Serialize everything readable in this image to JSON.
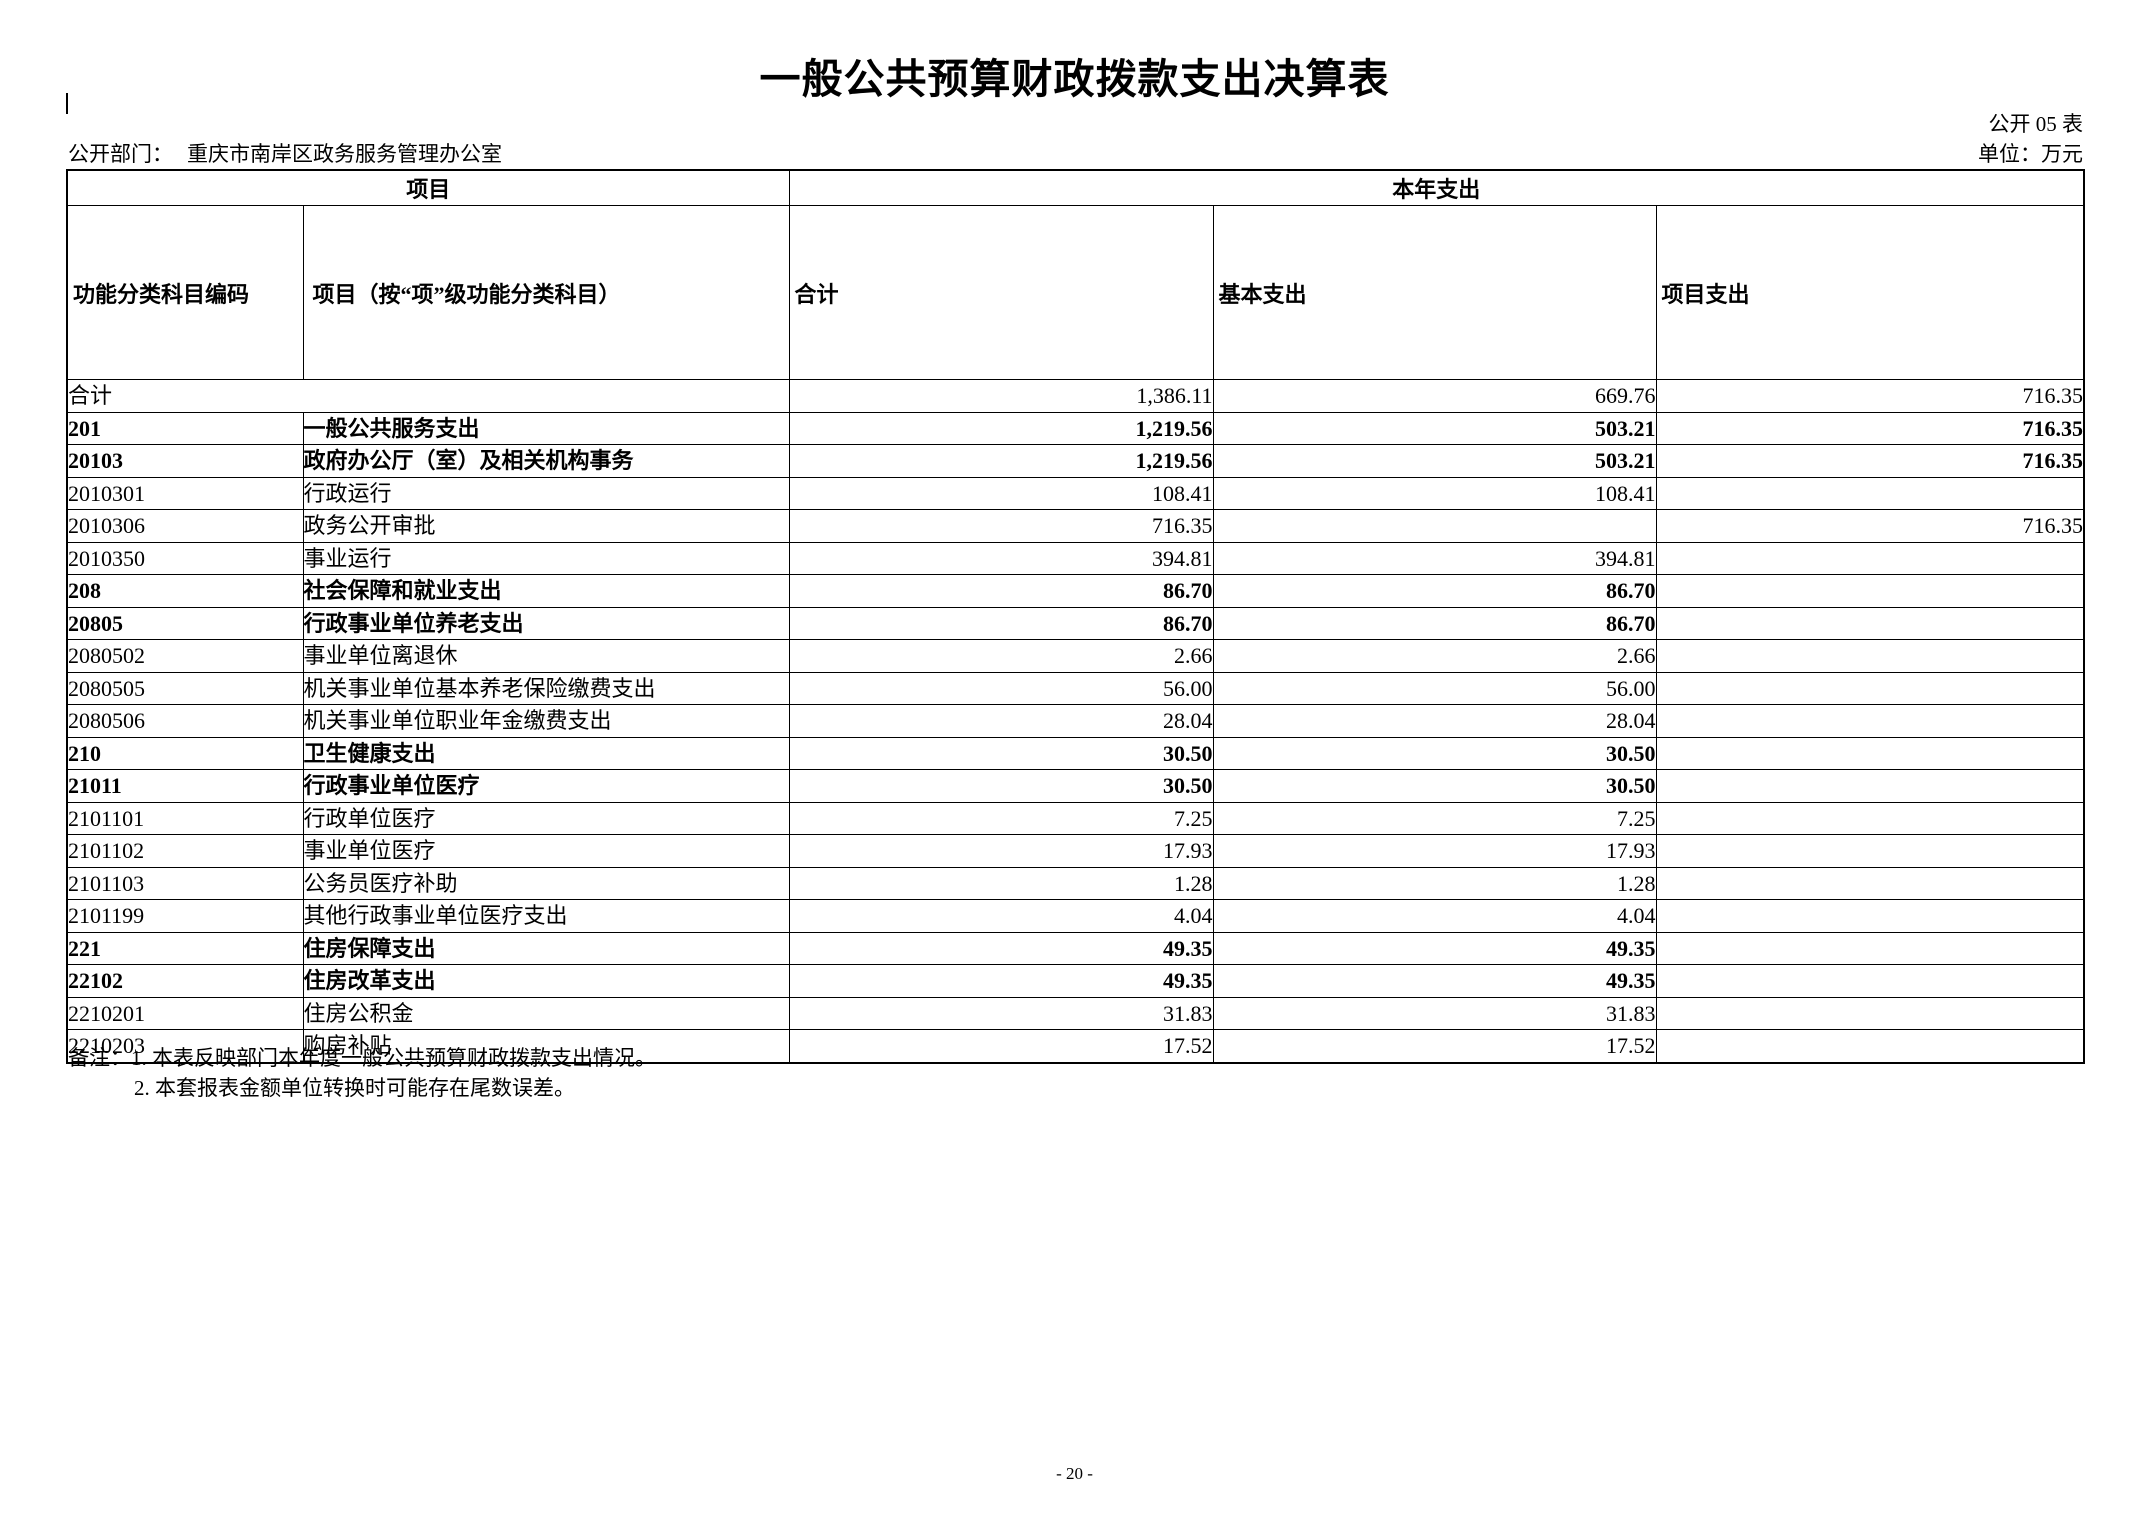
{
  "page": {
    "title": "一般公共预算财政拨款支出决算表",
    "table_code": "公开 05 表",
    "department_label": "公开部门：",
    "department_value": "重庆市南岸区政务服务管理办公室",
    "unit_label": "单位：万元",
    "page_number": "- 20 -"
  },
  "table": {
    "header": {
      "group_item": "项目",
      "group_current_year": "本年支出",
      "col_code": "功能分类科目编码",
      "col_item": "项目（按“项”级功能分类科目）",
      "col_total": "合计",
      "col_basic": "基本支出",
      "col_project": "项目支出"
    },
    "rows": [
      {
        "code": "",
        "name": "合计",
        "merged": true,
        "bold": false,
        "total": "1,386.11",
        "basic": "669.76",
        "project": "716.35"
      },
      {
        "code": "201",
        "name": "一般公共服务支出",
        "merged": false,
        "bold": true,
        "total": "1,219.56",
        "basic": "503.21",
        "project": "716.35"
      },
      {
        "code": "20103",
        "name": "政府办公厅（室）及相关机构事务",
        "merged": false,
        "bold": true,
        "total": "1,219.56",
        "basic": "503.21",
        "project": "716.35"
      },
      {
        "code": "2010301",
        "name": "行政运行",
        "merged": false,
        "bold": false,
        "total": "108.41",
        "basic": "108.41",
        "project": ""
      },
      {
        "code": "2010306",
        "name": "政务公开审批",
        "merged": false,
        "bold": false,
        "total": "716.35",
        "basic": "",
        "project": "716.35"
      },
      {
        "code": "2010350",
        "name": "事业运行",
        "merged": false,
        "bold": false,
        "total": "394.81",
        "basic": "394.81",
        "project": ""
      },
      {
        "code": "208",
        "name": "社会保障和就业支出",
        "merged": false,
        "bold": true,
        "total": "86.70",
        "basic": "86.70",
        "project": ""
      },
      {
        "code": "20805",
        "name": "行政事业单位养老支出",
        "merged": false,
        "bold": true,
        "total": "86.70",
        "basic": "86.70",
        "project": ""
      },
      {
        "code": "2080502",
        "name": "事业单位离退休",
        "merged": false,
        "bold": false,
        "total": "2.66",
        "basic": "2.66",
        "project": ""
      },
      {
        "code": "2080505",
        "name": "机关事业单位基本养老保险缴费支出",
        "merged": false,
        "bold": false,
        "total": "56.00",
        "basic": "56.00",
        "project": ""
      },
      {
        "code": "2080506",
        "name": "机关事业单位职业年金缴费支出",
        "merged": false,
        "bold": false,
        "total": "28.04",
        "basic": "28.04",
        "project": ""
      },
      {
        "code": "210",
        "name": "卫生健康支出",
        "merged": false,
        "bold": true,
        "total": "30.50",
        "basic": "30.50",
        "project": ""
      },
      {
        "code": "21011",
        "name": "行政事业单位医疗",
        "merged": false,
        "bold": true,
        "total": "30.50",
        "basic": "30.50",
        "project": ""
      },
      {
        "code": "2101101",
        "name": "行政单位医疗",
        "merged": false,
        "bold": false,
        "total": "7.25",
        "basic": "7.25",
        "project": ""
      },
      {
        "code": "2101102",
        "name": "事业单位医疗",
        "merged": false,
        "bold": false,
        "total": "17.93",
        "basic": "17.93",
        "project": ""
      },
      {
        "code": "2101103",
        "name": "公务员医疗补助",
        "merged": false,
        "bold": false,
        "total": "1.28",
        "basic": "1.28",
        "project": ""
      },
      {
        "code": "2101199",
        "name": "其他行政事业单位医疗支出",
        "merged": false,
        "bold": false,
        "total": "4.04",
        "basic": "4.04",
        "project": ""
      },
      {
        "code": "221",
        "name": "住房保障支出",
        "merged": false,
        "bold": true,
        "total": "49.35",
        "basic": "49.35",
        "project": ""
      },
      {
        "code": "22102",
        "name": "住房改革支出",
        "merged": false,
        "bold": true,
        "total": "49.35",
        "basic": "49.35",
        "project": ""
      },
      {
        "code": "2210201",
        "name": "住房公积金",
        "merged": false,
        "bold": false,
        "total": "31.83",
        "basic": "31.83",
        "project": ""
      },
      {
        "code": "2210203",
        "name": "购房补贴",
        "merged": false,
        "bold": false,
        "total": "17.52",
        "basic": "17.52",
        "project": ""
      }
    ]
  },
  "notes": {
    "label": "备注：",
    "items": [
      "1. 本表反映部门本年度一般公共预算财政拨款支出情况。",
      "2. 本套报表金额单位转换时可能存在尾数误差。"
    ]
  }
}
